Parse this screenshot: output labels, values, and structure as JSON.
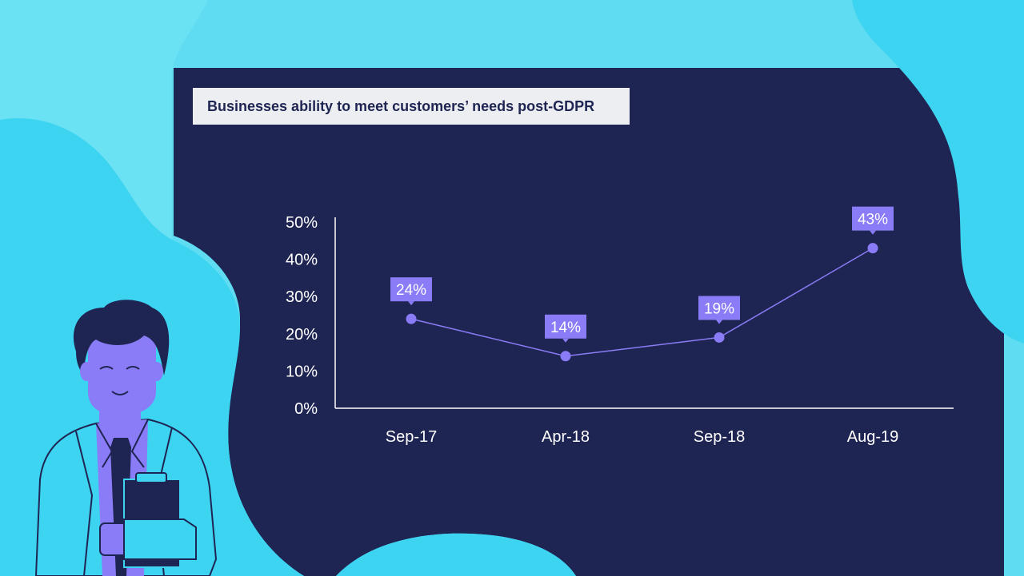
{
  "colors": {
    "background": "#5fdcf2",
    "panel": "#1f2553",
    "accent": "#8a7cf6",
    "title_box": "#eceef2",
    "text_light": "#ffffff"
  },
  "chart_data": {
    "type": "line",
    "title": "Businesses ability to meet customers’ needs post-GDPR",
    "categories": [
      "Sep-17",
      "Apr-18",
      "Sep-18",
      "Aug-19"
    ],
    "series": [
      {
        "values": [
          24,
          14,
          19,
          43
        ]
      }
    ],
    "data_labels": [
      "24%",
      "14%",
      "19%",
      "43%"
    ],
    "y_ticks": [
      "0%",
      "10%",
      "20%",
      "30%",
      "40%",
      "50%"
    ],
    "ylim": [
      0,
      50
    ],
    "grid": false,
    "legend": "none"
  }
}
